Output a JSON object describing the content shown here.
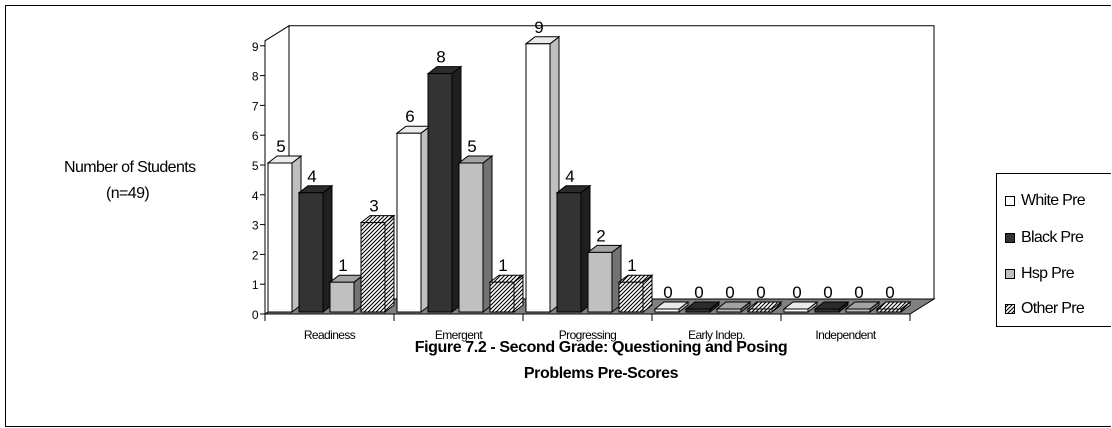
{
  "chart_data": {
    "type": "bar",
    "title": "Figure 7.2 - Second Grade: Questioning and Posing",
    "subtitle": "Problems Pre-Scores",
    "ylabel_lines": [
      "Number of Students",
      "(n=49)"
    ],
    "xlabel": "",
    "categories": [
      "Readiness",
      "Emergent",
      "Progressing",
      "Early Indep.",
      "Independent"
    ],
    "series": [
      {
        "name": "White Pre",
        "values": [
          5,
          6,
          9,
          0,
          0
        ],
        "color": "#ffffff",
        "pattern": "none"
      },
      {
        "name": "Black Pre",
        "values": [
          4,
          8,
          4,
          0,
          0
        ],
        "color": "#333333",
        "pattern": "none"
      },
      {
        "name": "Hsp Pre",
        "values": [
          1,
          5,
          2,
          0,
          0
        ],
        "color": "#c0c0c0",
        "pattern": "none"
      },
      {
        "name": "Other Pre",
        "values": [
          3,
          1,
          1,
          0,
          0
        ],
        "color": "#ffffff",
        "pattern": "diagonal-hatch"
      }
    ],
    "yticks": [
      "0",
      "1",
      "2",
      "3",
      "4",
      "5",
      "6",
      "7",
      "8",
      "9"
    ],
    "ylim": [
      0,
      9
    ],
    "grid": false,
    "legend_position": "right",
    "style": "3d-clustered-column",
    "floor_color": "#808080"
  }
}
